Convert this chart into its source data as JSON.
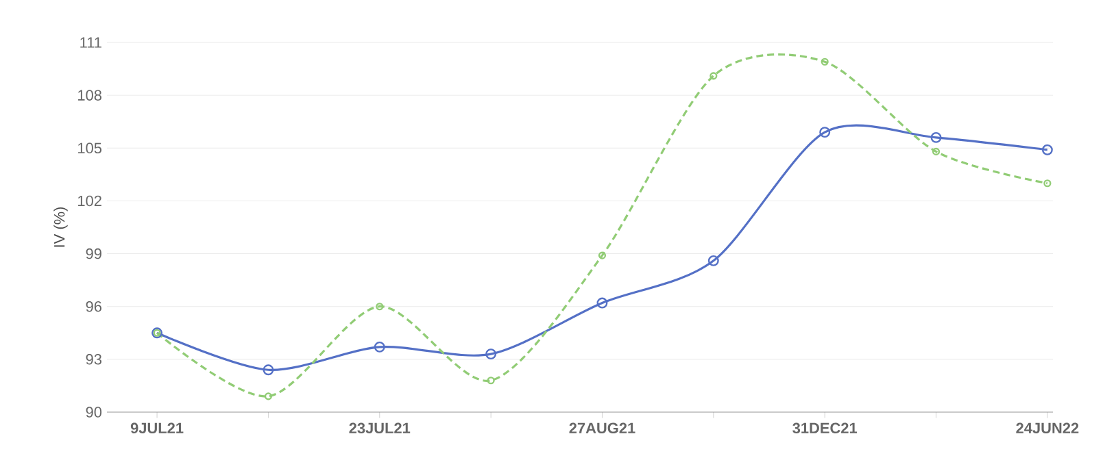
{
  "chart_data": {
    "type": "line",
    "ylabel": "IV (%)",
    "categories": [
      "9JUL21",
      null,
      "23JUL21",
      null,
      "27AUG21",
      null,
      "31DEC21",
      null,
      "24JUN22"
    ],
    "series": [
      {
        "color": "#5470c6",
        "line_style": "solid",
        "values": [
          94.5,
          92.4,
          93.7,
          93.3,
          96.2,
          98.6,
          105.9,
          105.6,
          104.9
        ]
      },
      {
        "color": "#91cc75",
        "line_style": "dashed",
        "values": [
          94.5,
          90.9,
          96.0,
          91.8,
          98.9,
          109.1,
          109.9,
          104.8,
          103.0
        ]
      }
    ],
    "ylim": [
      90,
      111
    ],
    "yticks": [
      90,
      93,
      96,
      99,
      102,
      105,
      108,
      111
    ],
    "grid": "y",
    "marker": "circle"
  }
}
